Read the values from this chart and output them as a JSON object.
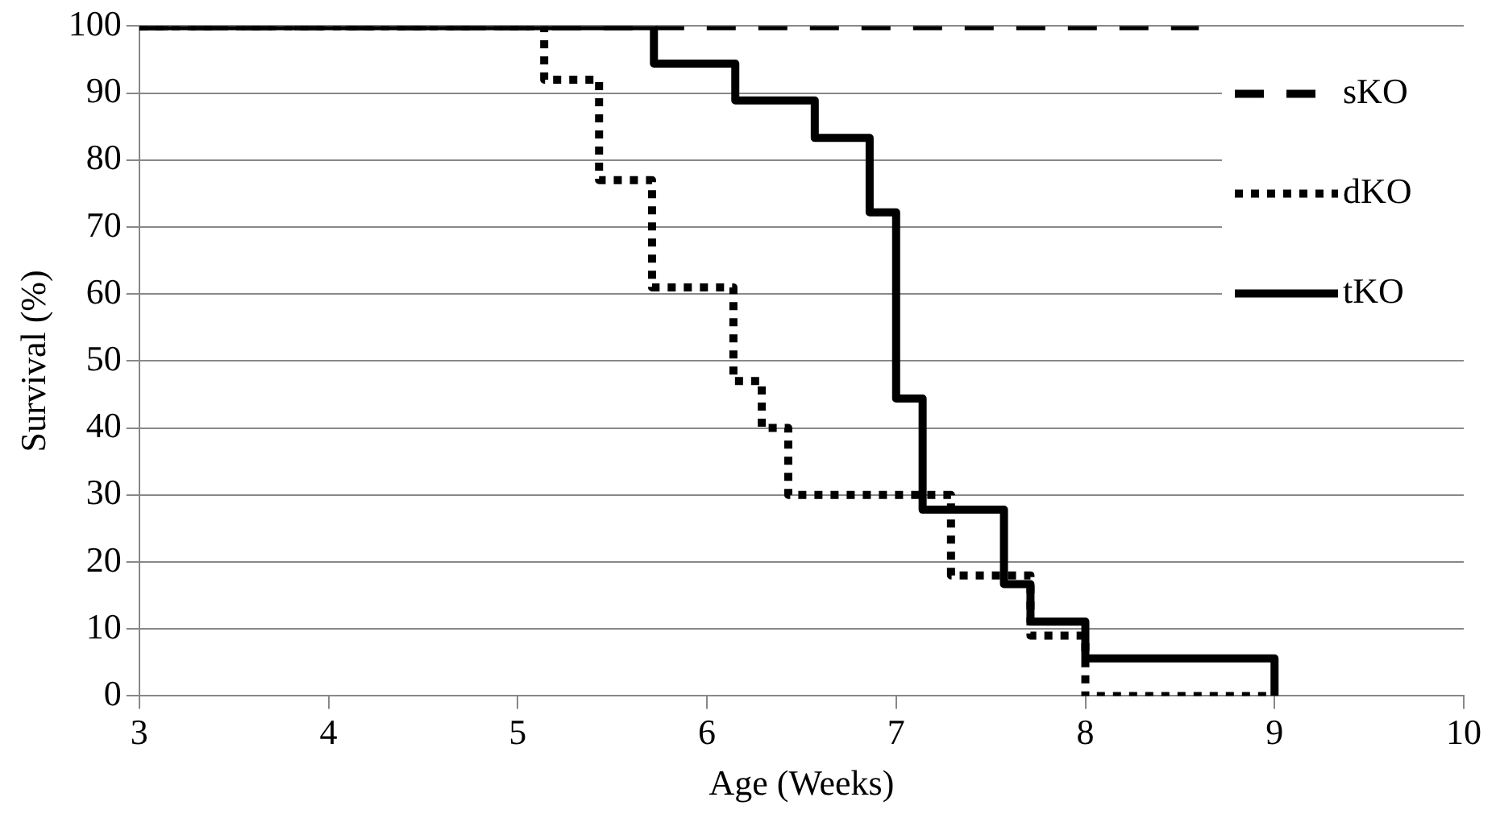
{
  "chart_data": {
    "type": "step",
    "xlabel": "Age (Weeks)",
    "ylabel": "Survival (%)",
    "xlim": [
      3,
      10
    ],
    "xticks": [
      3,
      4,
      5,
      6,
      7,
      8,
      9,
      10
    ],
    "ylim": [
      0,
      100
    ],
    "yticks": [
      0,
      10,
      20,
      30,
      40,
      50,
      60,
      70,
      80,
      90,
      100
    ],
    "grid": "y",
    "legend": "right",
    "series": [
      {
        "name": "sKO",
        "color": "#000000",
        "line_style": "dashed",
        "x": [
          3,
          8.6
        ],
        "values": [
          100,
          100
        ]
      },
      {
        "name": "dKO",
        "color": "#000000",
        "line_style": "dotted",
        "x": [
          3,
          5.14,
          5.43,
          5.71,
          6.14,
          6.29,
          6.43,
          7.29,
          7.71,
          8.0,
          9.0
        ],
        "values": [
          100,
          92,
          77,
          61,
          47,
          40,
          30,
          18,
          9,
          0,
          0
        ]
      },
      {
        "name": "tKO",
        "color": "#000000",
        "line_style": "solid",
        "x": [
          3,
          5.72,
          6.15,
          6.57,
          6.86,
          7.0,
          7.14,
          7.57,
          7.71,
          8.0,
          9.0
        ],
        "values": [
          100,
          94.4,
          88.9,
          83.3,
          72.2,
          44.4,
          27.8,
          16.7,
          11.1,
          5.6,
          0
        ]
      }
    ]
  }
}
